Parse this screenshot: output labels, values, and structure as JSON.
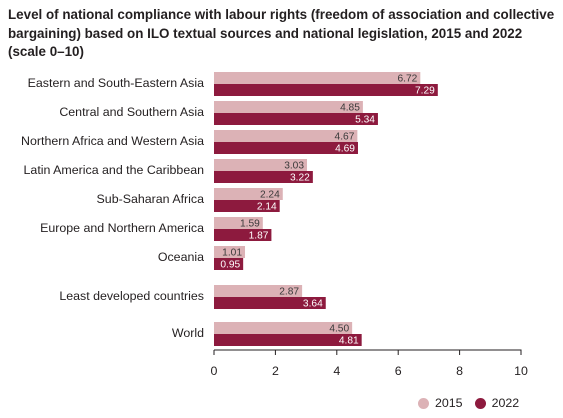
{
  "title": "Level of national compliance with labour rights (freedom of association and collective bargaining) based on ILO textual sources and national legislation, 2015 and 2022 (scale 0–10)",
  "chart_data": {
    "type": "bar",
    "orientation": "horizontal",
    "categories": [
      "Eastern and South-Eastern Asia",
      "Central and Southern Asia",
      "Northern Africa and Western Asia",
      "Latin America and the Caribbean",
      "Sub-Saharan Africa",
      "Europe and Northern America",
      "Oceania",
      "Least developed countries",
      "World"
    ],
    "series": [
      {
        "name": "2015",
        "color": "#dcb2b6",
        "values": [
          6.72,
          4.85,
          4.67,
          3.03,
          2.24,
          1.59,
          1.01,
          2.87,
          4.5
        ],
        "labels": [
          "6.72",
          "4.85",
          "4.67",
          "3.03",
          "2.24",
          "1.59",
          "1.01",
          "2.87",
          "4.50"
        ]
      },
      {
        "name": "2022",
        "color": "#8d1a3e",
        "values": [
          7.29,
          5.34,
          4.69,
          3.22,
          2.14,
          1.87,
          0.95,
          3.64,
          4.81
        ],
        "labels": [
          "7.29",
          "5.34",
          "4.69",
          "3.22",
          "2.14",
          "1.87",
          "0.95",
          "3.64",
          "4.81"
        ]
      }
    ],
    "xlim": [
      0,
      10
    ],
    "xticks": [
      "0",
      "2",
      "4",
      "6",
      "8",
      "10"
    ],
    "grid": false,
    "legend_position": "bottom-right"
  }
}
